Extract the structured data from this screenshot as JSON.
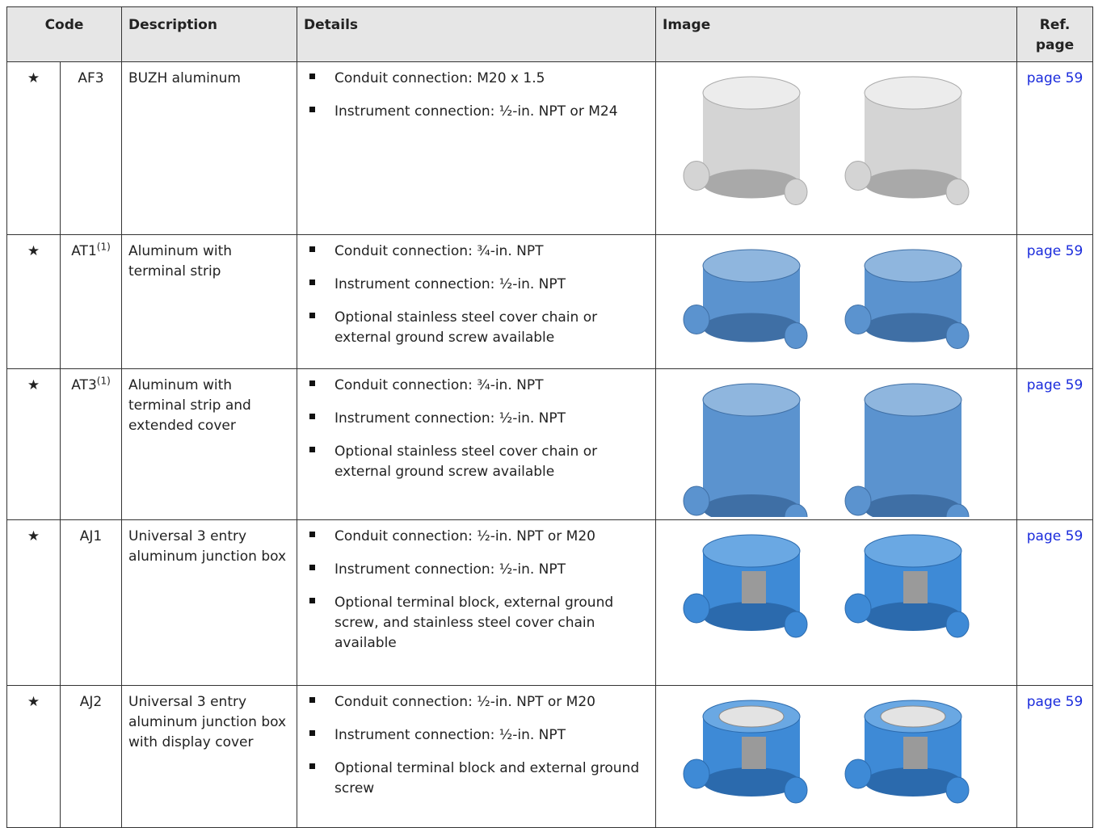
{
  "table": {
    "header": {
      "code": "Code",
      "description": "Description",
      "details": "Details",
      "image": "Image",
      "ref": "Ref. page"
    },
    "rows": [
      {
        "marker": "★",
        "code": "AF3",
        "description": "BUZH aluminum",
        "details": [
          "Conduit connection: M20 x 1.5",
          "Instrument connection: ½-in. NPT or M24"
        ],
        "ref": "page 59"
      },
      {
        "marker": "★",
        "code": "AT1",
        "note": "(1)",
        "description": "Aluminum with terminal strip",
        "details": [
          "Conduit connection: ¾-in. NPT",
          "Instrument connection: ½-in. NPT",
          "Optional stainless steel cover chain or external ground screw available"
        ],
        "ref": "page 59"
      },
      {
        "marker": "★",
        "code": "AT3",
        "note": "(1)",
        "description": "Aluminum with terminal strip and extended cover",
        "details": [
          "Conduit connection: ¾-in. NPT",
          "Instrument connection: ½-in. NPT",
          "Optional stainless steel cover chain or external ground screw available"
        ],
        "ref": "page 59"
      },
      {
        "marker": "★",
        "code": "AJ1",
        "description": "Universal 3 entry aluminum junction box",
        "details": [
          "Conduit connection: ½-in. NPT or M20",
          "Instrument connection: ½-in. NPT",
          "Optional terminal block, external ground screw, and stainless steel cover chain available"
        ],
        "ref": "page 59"
      },
      {
        "marker": "★",
        "code": "AJ2",
        "description": "Universal 3 entry aluminum junction box with display cover",
        "details": [
          "Conduit connection: ½-in. NPT or M20",
          "Instrument connection: ½-in. NPT",
          "Optional terminal block and external ground screw"
        ],
        "ref": "page 59"
      }
    ]
  }
}
